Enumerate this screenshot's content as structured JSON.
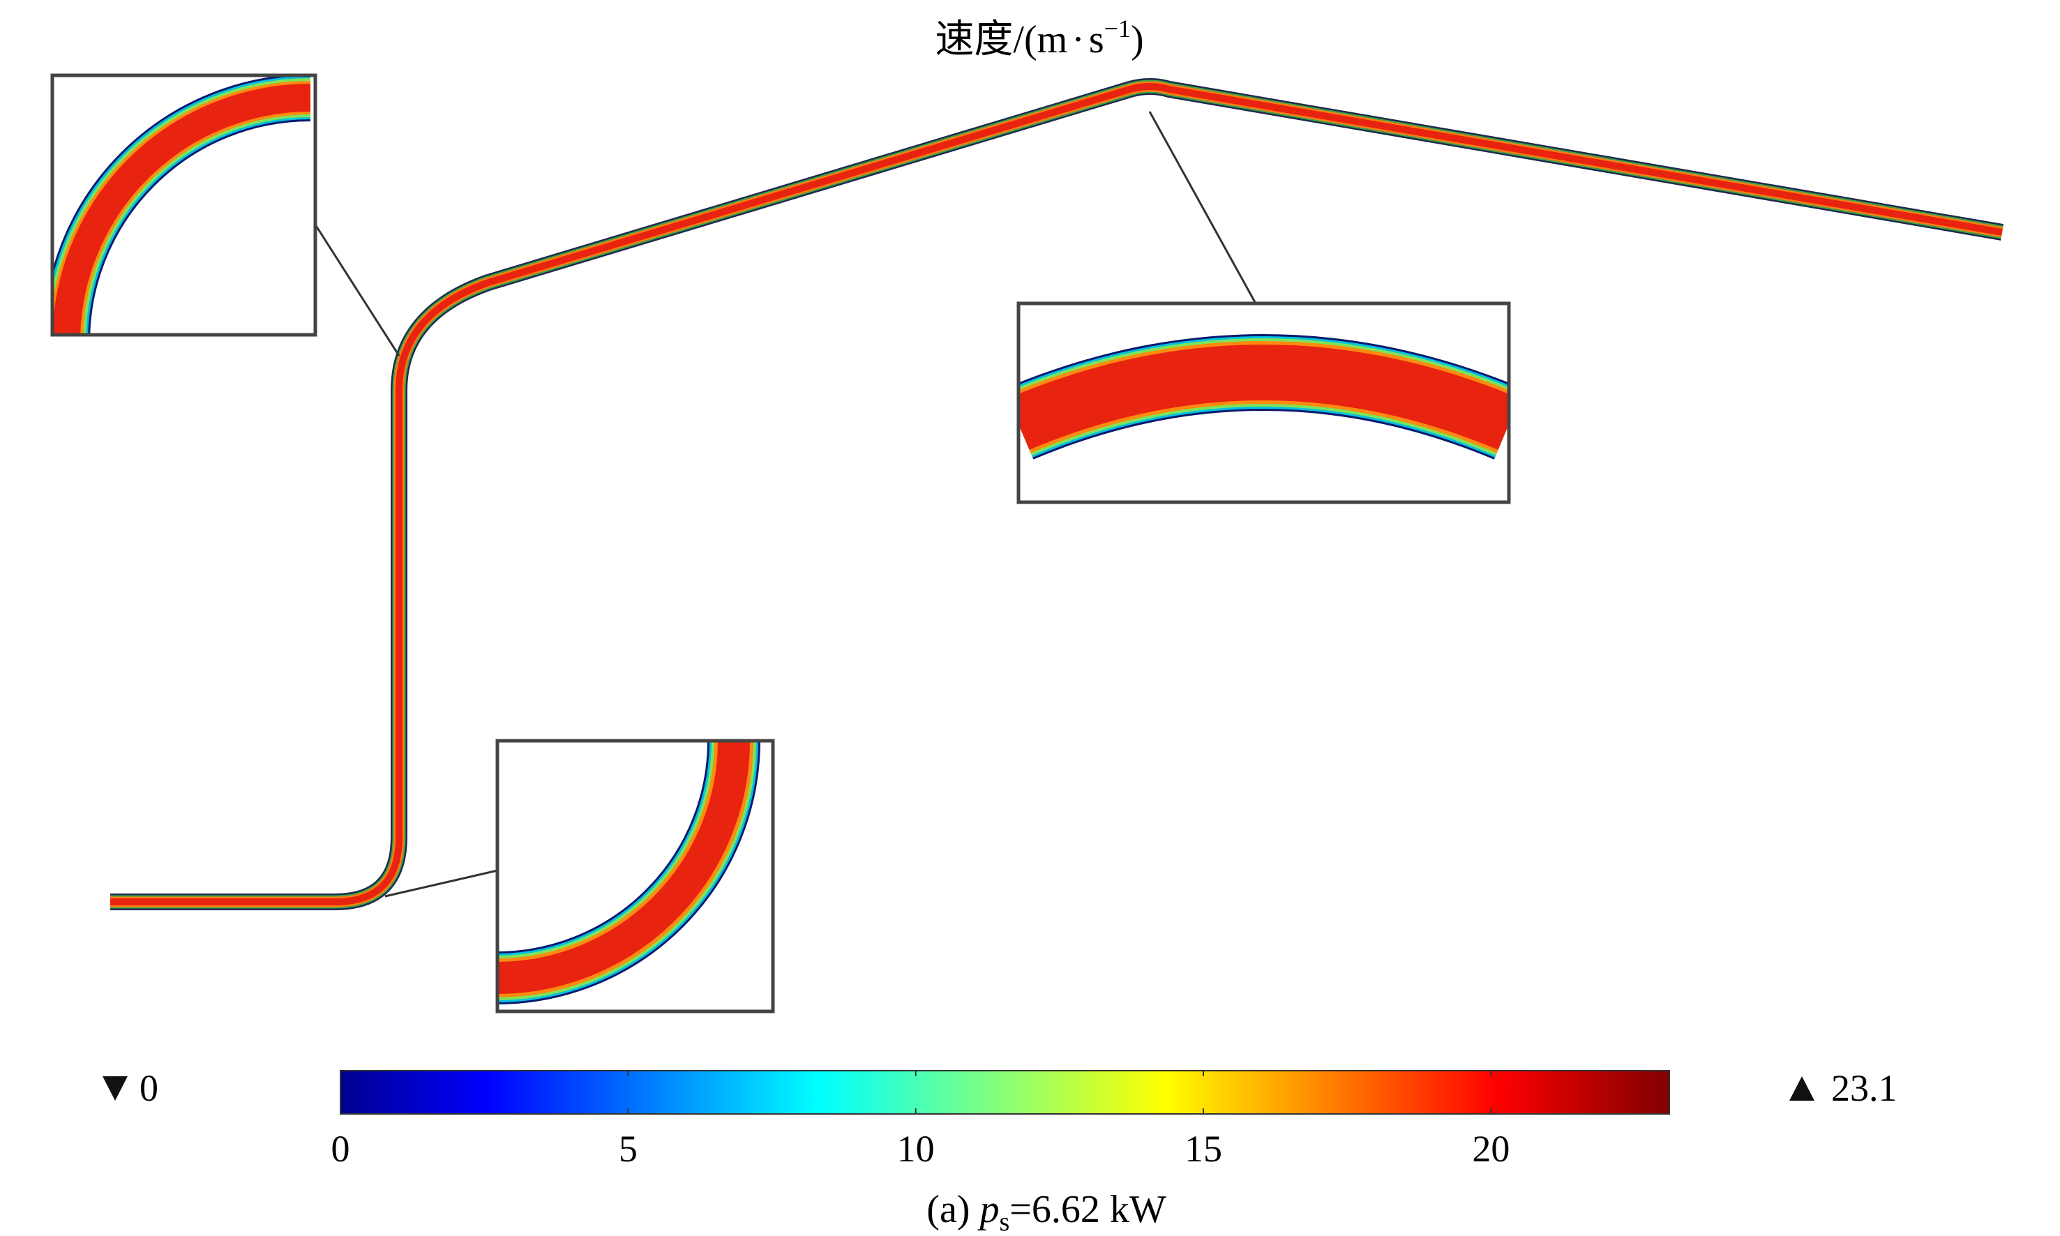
{
  "figure": {
    "title_main": "速度/(m",
    "title_dot": "·",
    "title_s": "s",
    "title_exp": "−1",
    "title_close": ")",
    "min_label": "0",
    "max_label": "23.1",
    "caption_prefix": "(a)",
    "caption_p": "p",
    "caption_sub": "s",
    "caption_value": "=6.62 kW"
  },
  "colorbar": {
    "min": 0,
    "max": 23.1,
    "ticks": [
      "0",
      "5",
      "10",
      "15",
      "20"
    ],
    "tick_values": [
      0,
      5,
      10,
      15,
      20
    ],
    "colormap": [
      "#00008f",
      "#0000ff",
      "#00ffff",
      "#ffff00",
      "#ff0000",
      "#800000"
    ]
  },
  "colors": {
    "pipe_core": "#e8230f",
    "pipe_outer": "#0a1a6e",
    "wall_green": "#2ea84a",
    "frame": "#444444"
  }
}
